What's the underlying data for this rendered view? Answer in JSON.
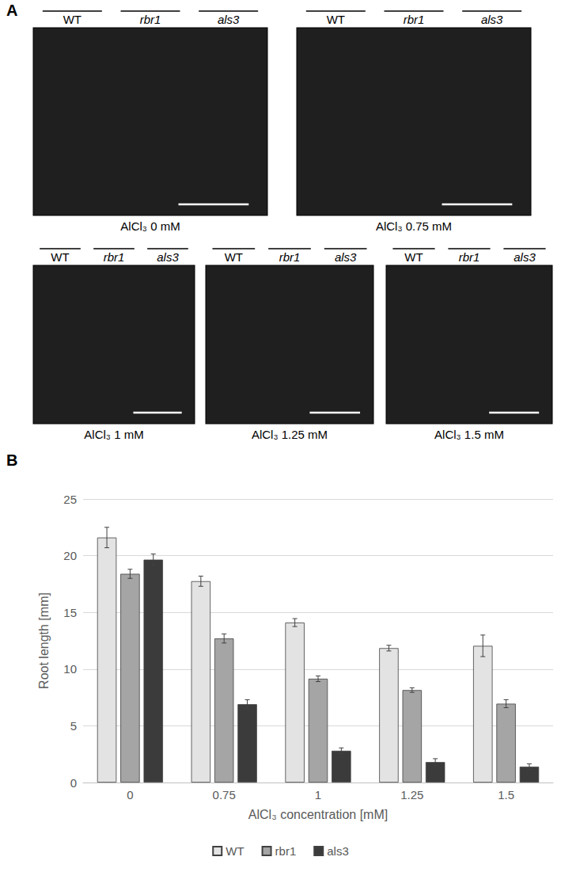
{
  "panel_a": {
    "label": "A",
    "photos": [
      {
        "genotypes": [
          "WT",
          "rbr1",
          "als3"
        ],
        "caption": "AlCl₃ 0 mM"
      },
      {
        "genotypes": [
          "WT",
          "rbr1",
          "als3"
        ],
        "caption": "AlCl₃ 0.75 mM"
      },
      {
        "genotypes": [
          "WT",
          "rbr1",
          "als3"
        ],
        "caption": "AlCl₃ 1 mM"
      },
      {
        "genotypes": [
          "WT",
          "rbr1",
          "als3"
        ],
        "caption": "AlCl₃ 1.25 mM"
      },
      {
        "genotypes": [
          "WT",
          "rbr1",
          "als3"
        ],
        "caption": "AlCl₃ 1.5 mM"
      }
    ]
  },
  "panel_b": {
    "label": "B"
  },
  "chart_data": {
    "type": "bar",
    "x_label": "AlCl₃ concentration [mM]",
    "y_label": "Root length [mm]",
    "categories": [
      "0",
      "0.75",
      "1",
      "1.25",
      "1.5"
    ],
    "series": [
      {
        "name": "WT",
        "color": "#e3e3e3",
        "values": [
          21.6,
          17.75,
          14.1,
          11.85,
          12.05
        ],
        "errors": [
          0.9,
          0.45,
          0.35,
          0.25,
          0.95
        ]
      },
      {
        "name": "rbr1",
        "color": "#a5a5a5",
        "values": [
          18.4,
          12.7,
          9.15,
          8.15,
          6.95
        ],
        "errors": [
          0.4,
          0.4,
          0.25,
          0.2,
          0.35
        ]
      },
      {
        "name": "als3",
        "color": "#3b3b3b",
        "values": [
          19.65,
          6.9,
          2.8,
          1.8,
          1.4
        ],
        "errors": [
          0.5,
          0.4,
          0.25,
          0.3,
          0.25
        ]
      }
    ],
    "ylim": [
      0,
      25
    ],
    "yticks": [
      0,
      5,
      10,
      15,
      20,
      25
    ],
    "grid": true,
    "legend": "bottom"
  }
}
